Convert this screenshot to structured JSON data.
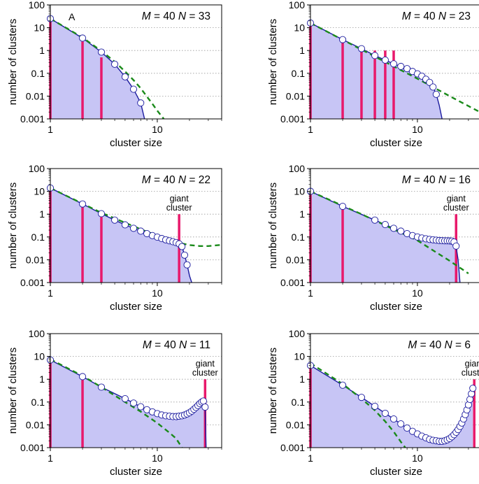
{
  "chart_data": [
    {
      "type": "line",
      "panel_label": "A",
      "M_label": "M",
      "M_value": "= 40",
      "N_label": "N",
      "N_value": "= 33",
      "xlabel": "cluster size",
      "ylabel": "number of clusters",
      "xscale": "log",
      "yscale": "log",
      "xlim": [
        1,
        40
      ],
      "ylim": [
        0.001,
        100
      ],
      "xticks": [
        {
          "v": 1,
          "label": "1"
        },
        {
          "v": 10,
          "label": "10"
        }
      ],
      "yticks": [
        {
          "v": 100,
          "label": "100"
        },
        {
          "v": 10,
          "label": "10"
        },
        {
          "v": 1,
          "label": "1"
        },
        {
          "v": 0.1,
          "label": "0.1"
        },
        {
          "v": 0.01,
          "label": "0.01"
        },
        {
          "v": 0.001,
          "label": "0.001"
        }
      ],
      "grid": "horizontal dotted",
      "bars": {
        "color": "#e8196b",
        "x": [
          1,
          2,
          3
        ],
        "y": [
          20,
          2.5,
          0.5
        ]
      },
      "distribution_points": {
        "x": [
          1,
          2,
          3,
          4,
          5,
          6,
          7
        ],
        "y": [
          25,
          3.5,
          0.85,
          0.25,
          0.07,
          0.02,
          0.005
        ]
      },
      "fit_curve": {
        "color": "#1a1a9e",
        "x": [
          1,
          2,
          3,
          4,
          5,
          6,
          7,
          7.6
        ],
        "y": [
          25,
          3.5,
          0.85,
          0.25,
          0.07,
          0.02,
          0.005,
          0.001
        ]
      },
      "reference_curve": {
        "color": "#1a8a1a",
        "style": "dashed",
        "x": [
          1,
          2,
          3,
          4,
          5,
          6,
          7,
          8,
          9,
          10,
          11.5
        ],
        "y": [
          25,
          3.7,
          0.95,
          0.32,
          0.12,
          0.05,
          0.022,
          0.0095,
          0.0046,
          0.0023,
          0.001
        ]
      }
    },
    {
      "type": "line",
      "M_label": "M",
      "M_value": "= 40",
      "N_label": "N",
      "N_value": "= 23",
      "xlabel": "cluster size",
      "ylabel": "number of clusters",
      "xscale": "log",
      "yscale": "log",
      "xlim": [
        1,
        40
      ],
      "ylim": [
        0.001,
        100
      ],
      "xticks": [
        {
          "v": 1,
          "label": "1"
        },
        {
          "v": 10,
          "label": "10"
        }
      ],
      "yticks": [
        {
          "v": 100,
          "label": "100"
        },
        {
          "v": 10,
          "label": "10"
        },
        {
          "v": 1,
          "label": "1"
        },
        {
          "v": 0.1,
          "label": "0.1"
        },
        {
          "v": 0.01,
          "label": "0.01"
        },
        {
          "v": 0.001,
          "label": "0.001"
        }
      ],
      "grid": "horizontal dotted",
      "bars": {
        "color": "#e8196b",
        "x": [
          1,
          2,
          3,
          4,
          5,
          6
        ],
        "y": [
          14,
          2.5,
          1,
          1,
          1,
          1
        ]
      },
      "distribution_points": {
        "x": [
          1,
          2,
          3,
          4,
          5,
          6,
          7,
          8,
          9,
          10,
          11,
          12,
          13,
          14,
          15
        ],
        "y": [
          16,
          3,
          1.2,
          0.6,
          0.38,
          0.26,
          0.2,
          0.16,
          0.12,
          0.095,
          0.075,
          0.055,
          0.04,
          0.025,
          0.012
        ]
      },
      "fit_curve": {
        "color": "#1a1a9e",
        "x": [
          1,
          2,
          3,
          4,
          5,
          6,
          7,
          8,
          9,
          10,
          11,
          12,
          13,
          14,
          15,
          16,
          17
        ],
        "y": [
          16,
          3,
          1.2,
          0.6,
          0.38,
          0.26,
          0.2,
          0.16,
          0.12,
          0.095,
          0.075,
          0.055,
          0.04,
          0.025,
          0.012,
          0.004,
          0.001
        ]
      },
      "reference_curve": {
        "color": "#1a8a1a",
        "style": "dashed",
        "x": [
          1,
          3,
          10,
          20,
          40
        ],
        "y": [
          16,
          1.1,
          0.058,
          0.01,
          0.0018
        ]
      }
    },
    {
      "type": "line",
      "M_label": "M",
      "M_value": "= 40",
      "N_label": "N",
      "N_value": "= 22",
      "giant_label_1": "giant",
      "giant_label_2": "cluster",
      "xlabel": "cluster size",
      "ylabel": "number of clusters",
      "xscale": "log",
      "yscale": "log",
      "xlim": [
        1,
        40
      ],
      "ylim": [
        0.001,
        100
      ],
      "xticks": [
        {
          "v": 1,
          "label": "1"
        },
        {
          "v": 10,
          "label": "10"
        }
      ],
      "yticks": [
        {
          "v": 100,
          "label": "100"
        },
        {
          "v": 10,
          "label": "10"
        },
        {
          "v": 1,
          "label": "1"
        },
        {
          "v": 0.1,
          "label": "0.1"
        },
        {
          "v": 0.01,
          "label": "0.01"
        },
        {
          "v": 0.001,
          "label": "0.001"
        }
      ],
      "grid": "horizontal dotted",
      "bars": {
        "color": "#e8196b",
        "x": [
          1,
          2,
          3,
          16
        ],
        "y": [
          12,
          2,
          0.8,
          1
        ]
      },
      "distribution_points": {
        "x": [
          1,
          2,
          3,
          4,
          5,
          6,
          7,
          8,
          9,
          10,
          11,
          12,
          13,
          14,
          15,
          16,
          17,
          18,
          19
        ],
        "y": [
          14,
          2.8,
          1.05,
          0.55,
          0.34,
          0.24,
          0.18,
          0.14,
          0.115,
          0.098,
          0.085,
          0.075,
          0.068,
          0.062,
          0.057,
          0.05,
          0.038,
          0.016,
          0.006
        ]
      },
      "fit_curve": {
        "color": "#1a1a9e",
        "x": [
          1,
          2,
          3,
          4,
          5,
          6,
          7,
          8,
          9,
          10,
          11,
          12,
          13,
          14,
          15,
          16,
          17,
          18,
          19,
          20,
          21
        ],
        "y": [
          14,
          2.8,
          1.05,
          0.55,
          0.34,
          0.24,
          0.18,
          0.14,
          0.115,
          0.098,
          0.085,
          0.075,
          0.068,
          0.062,
          0.057,
          0.05,
          0.038,
          0.016,
          0.006,
          0.002,
          0.001
        ]
      },
      "reference_curve": {
        "color": "#1a8a1a",
        "style": "dashed",
        "x": [
          1,
          2,
          3,
          5,
          8,
          12,
          16,
          20,
          25,
          30,
          40
        ],
        "y": [
          14,
          2.9,
          1.15,
          0.42,
          0.17,
          0.085,
          0.055,
          0.044,
          0.04,
          0.04,
          0.045
        ]
      }
    },
    {
      "type": "line",
      "M_label": "M",
      "M_value": "= 40",
      "N_label": "N",
      "N_value": "= 16",
      "giant_label_1": "giant",
      "giant_label_2": "cluster",
      "xlabel": "cluster size",
      "ylabel": "number of clusters",
      "xscale": "log",
      "yscale": "log",
      "xlim": [
        1,
        40
      ],
      "ylim": [
        0.001,
        100
      ],
      "xticks": [
        {
          "v": 1,
          "label": "1"
        },
        {
          "v": 10,
          "label": "10"
        }
      ],
      "yticks": [
        {
          "v": 100,
          "label": "100"
        },
        {
          "v": 10,
          "label": "10"
        },
        {
          "v": 1,
          "label": "1"
        },
        {
          "v": 0.1,
          "label": "0.1"
        },
        {
          "v": 0.01,
          "label": "0.01"
        },
        {
          "v": 0.001,
          "label": "0.001"
        }
      ],
      "grid": "horizontal dotted",
      "bars": {
        "color": "#e8196b",
        "x": [
          1,
          2,
          23
        ],
        "y": [
          9,
          1.8,
          1
        ]
      },
      "distribution_points": {
        "x": [
          1,
          2,
          4,
          5,
          6,
          7,
          8,
          9,
          10,
          11,
          12,
          13,
          14,
          15,
          16,
          17,
          18,
          19,
          20,
          21,
          22,
          23
        ],
        "y": [
          10,
          2.2,
          0.55,
          0.35,
          0.24,
          0.18,
          0.14,
          0.115,
          0.1,
          0.09,
          0.083,
          0.078,
          0.075,
          0.072,
          0.07,
          0.069,
          0.068,
          0.068,
          0.067,
          0.066,
          0.06,
          0.04
        ]
      },
      "fit_curve": {
        "color": "#1a1a9e",
        "x": [
          1,
          2,
          4,
          5,
          6,
          7,
          8,
          9,
          10,
          11,
          12,
          13,
          14,
          15,
          16,
          17,
          18,
          19,
          20,
          21,
          22,
          23,
          24,
          25
        ],
        "y": [
          10,
          2.2,
          0.55,
          0.35,
          0.24,
          0.18,
          0.14,
          0.115,
          0.1,
          0.09,
          0.083,
          0.078,
          0.075,
          0.072,
          0.07,
          0.069,
          0.068,
          0.068,
          0.067,
          0.066,
          0.06,
          0.04,
          0.01,
          0.001
        ]
      },
      "reference_curve": {
        "color": "#1a8a1a",
        "style": "dashed",
        "x": [
          1,
          3,
          10,
          20,
          30
        ],
        "y": [
          10,
          1,
          0.07,
          0.009,
          0.0025
        ]
      }
    },
    {
      "type": "line",
      "M_label": "M",
      "M_value": "= 40",
      "N_label": "N",
      "N_value": "= 11",
      "giant_label_1": "giant",
      "giant_label_2": "cluster",
      "xlabel": "cluster size",
      "ylabel": "number of clusters",
      "xscale": "log",
      "yscale": "log",
      "xlim": [
        1,
        40
      ],
      "ylim": [
        0.001,
        100
      ],
      "xticks": [
        {
          "v": 1,
          "label": "1"
        },
        {
          "v": 10,
          "label": "10"
        }
      ],
      "yticks": [
        {
          "v": 100,
          "label": "100"
        },
        {
          "v": 10,
          "label": "10"
        },
        {
          "v": 1,
          "label": "1"
        },
        {
          "v": 0.1,
          "label": "0.1"
        },
        {
          "v": 0.01,
          "label": "0.01"
        },
        {
          "v": 0.001,
          "label": "0.001"
        }
      ],
      "grid": "horizontal dotted",
      "bars": {
        "color": "#e8196b",
        "x": [
          1,
          2,
          28
        ],
        "y": [
          6,
          1.2,
          1
        ]
      },
      "distribution_points": {
        "x": [
          1,
          2,
          3,
          5,
          6,
          7,
          8,
          9,
          10,
          11,
          12,
          13,
          14,
          15,
          16,
          17,
          18,
          19,
          20,
          21,
          22,
          23,
          24,
          25,
          26,
          27,
          28
        ],
        "y": [
          7,
          1.3,
          0.45,
          0.14,
          0.09,
          0.062,
          0.046,
          0.037,
          0.031,
          0.027,
          0.025,
          0.024,
          0.023,
          0.023,
          0.024,
          0.025,
          0.027,
          0.03,
          0.034,
          0.04,
          0.048,
          0.058,
          0.07,
          0.085,
          0.1,
          0.11,
          0.06
        ]
      },
      "fit_curve": {
        "color": "#1a1a9e",
        "x": [
          1,
          2,
          3,
          5,
          6,
          7,
          8,
          9,
          10,
          11,
          12,
          13,
          14,
          15,
          16,
          17,
          18,
          19,
          20,
          21,
          22,
          23,
          24,
          25,
          26,
          27,
          28,
          28.6
        ],
        "y": [
          7,
          1.3,
          0.45,
          0.14,
          0.09,
          0.062,
          0.046,
          0.037,
          0.031,
          0.027,
          0.025,
          0.024,
          0.023,
          0.023,
          0.024,
          0.025,
          0.027,
          0.03,
          0.034,
          0.04,
          0.048,
          0.058,
          0.07,
          0.085,
          0.1,
          0.11,
          0.06,
          0.001
        ]
      },
      "reference_curve": {
        "color": "#1a8a1a",
        "style": "dashed",
        "x": [
          1,
          2,
          3,
          5,
          7,
          10,
          13,
          15,
          17
        ],
        "y": [
          7.5,
          1.4,
          0.45,
          0.1,
          0.038,
          0.012,
          0.0045,
          0.0025,
          0.001
        ]
      }
    },
    {
      "type": "line",
      "M_label": "M",
      "M_value": "= 40",
      "N_label": "N",
      "N_value": "= 6",
      "giant_label_1": "giant",
      "giant_label_2": "cluster",
      "xlabel": "cluster size",
      "ylabel": "number of clusters",
      "xscale": "log",
      "yscale": "log",
      "xlim": [
        1,
        40
      ],
      "ylim": [
        0.001,
        100
      ],
      "xticks": [
        {
          "v": 1,
          "label": "1"
        },
        {
          "v": 10,
          "label": "10"
        }
      ],
      "yticks": [
        {
          "v": 100,
          "label": "100"
        },
        {
          "v": 10,
          "label": "10"
        },
        {
          "v": 1,
          "label": "1"
        },
        {
          "v": 0.1,
          "label": "0.1"
        },
        {
          "v": 0.01,
          "label": "0.01"
        },
        {
          "v": 0.001,
          "label": "0.001"
        }
      ],
      "grid": "horizontal dotted",
      "bars": {
        "color": "#e8196b",
        "x": [
          1,
          34
        ],
        "y": [
          3.5,
          1
        ]
      },
      "distribution_points": {
        "x": [
          1,
          2,
          3,
          4,
          5,
          6,
          7,
          8,
          9,
          10,
          11,
          12,
          13,
          14,
          15,
          16,
          17,
          18,
          19,
          20,
          21,
          22,
          23,
          24,
          25,
          26,
          27,
          28,
          29,
          30,
          31,
          32,
          33
        ],
        "y": [
          4,
          0.55,
          0.16,
          0.065,
          0.032,
          0.018,
          0.011,
          0.0072,
          0.0052,
          0.004,
          0.0032,
          0.0027,
          0.0023,
          0.0021,
          0.002,
          0.0019,
          0.0019,
          0.002,
          0.0022,
          0.0025,
          0.003,
          0.0037,
          0.0047,
          0.0062,
          0.0085,
          0.012,
          0.018,
          0.028,
          0.045,
          0.075,
          0.13,
          0.23,
          0.4
        ]
      },
      "fit_curve": {
        "color": "#1a1a9e",
        "x": [
          1,
          2,
          3,
          4,
          5,
          6,
          7,
          8,
          9,
          10,
          11,
          12,
          13,
          14,
          15,
          16,
          17,
          18,
          19,
          20,
          21,
          22,
          23,
          24,
          25,
          26,
          27,
          28,
          29,
          30,
          31,
          32,
          33
        ],
        "y": [
          4,
          0.55,
          0.16,
          0.065,
          0.032,
          0.018,
          0.011,
          0.0072,
          0.0052,
          0.004,
          0.0032,
          0.0027,
          0.0023,
          0.0021,
          0.002,
          0.0019,
          0.0019,
          0.002,
          0.0022,
          0.0025,
          0.003,
          0.0037,
          0.0047,
          0.0062,
          0.0085,
          0.012,
          0.018,
          0.028,
          0.045,
          0.075,
          0.13,
          0.23,
          0.4
        ]
      },
      "reference_curve": {
        "color": "#1a8a1a",
        "style": "dashed",
        "x": [
          1,
          2,
          3,
          4,
          5,
          6,
          7,
          7.7
        ],
        "y": [
          5,
          0.62,
          0.14,
          0.043,
          0.014,
          0.005,
          0.0018,
          0.001
        ]
      }
    }
  ]
}
